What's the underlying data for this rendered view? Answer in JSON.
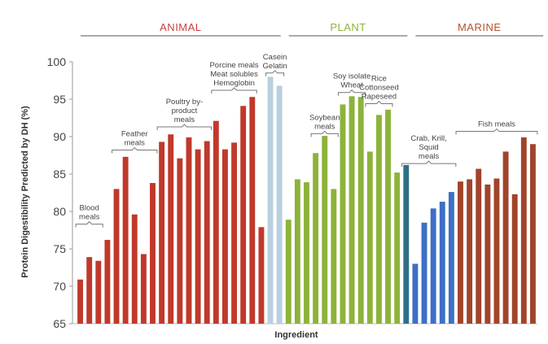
{
  "chart_data": {
    "type": "bar",
    "title": "",
    "xlabel": "Ingredient",
    "ylabel": "Protein Digestibility Predicted by DH (%)",
    "ylim": [
      65,
      100
    ],
    "yticks": [
      65,
      70,
      75,
      80,
      85,
      90,
      95,
      100
    ],
    "grid": false,
    "groups": [
      {
        "label": "ANIMAL",
        "color": "#c84040",
        "start": 0,
        "end": 22
      },
      {
        "label": "PLANT",
        "color": "#8fb33a",
        "start": 23,
        "end": 36
      },
      {
        "label": "MARINE",
        "color": "#b5532e",
        "start": 37,
        "end": 51
      }
    ],
    "series": [
      {
        "values": [
          70.9,
          73.9,
          73.4,
          76.2,
          83.0,
          87.3,
          79.6,
          74.3,
          83.8,
          89.3,
          90.3,
          87.1,
          89.9,
          88.3,
          89.4,
          92.1,
          88.3,
          89.2,
          94.1,
          95.3,
          77.9,
          98.0,
          96.8,
          78.9,
          84.3,
          83.9,
          87.8,
          90.1,
          83.0,
          94.3,
          95.4,
          95.3,
          88.0,
          92.9,
          93.6,
          85.2,
          86.2,
          73.0,
          78.5,
          80.4,
          81.3,
          82.6,
          84.0,
          84.3,
          85.7,
          83.6,
          84.4,
          88.0,
          82.3,
          89.9,
          89.0
        ],
        "colors": [
          "#c0392b",
          "#c0392b",
          "#c0392b",
          "#c0392b",
          "#c0392b",
          "#c0392b",
          "#c0392b",
          "#c0392b",
          "#c0392b",
          "#c0392b",
          "#c0392b",
          "#c0392b",
          "#c0392b",
          "#c0392b",
          "#c0392b",
          "#c0392b",
          "#c0392b",
          "#c0392b",
          "#c0392b",
          "#c0392b",
          "#c0392b",
          "#b8d0e0",
          "#b8d0e0",
          "#8db33a",
          "#8db33a",
          "#8db33a",
          "#8db33a",
          "#8db33a",
          "#8db33a",
          "#8db33a",
          "#8db33a",
          "#8db33a",
          "#8db33a",
          "#8db33a",
          "#8db33a",
          "#8db33a",
          "#2e6f86",
          "#3d6fc6",
          "#3d6fc6",
          "#3d6fc6",
          "#3d6fc6",
          "#3d6fc6",
          "#a0442a",
          "#a0442a",
          "#a0442a",
          "#a0442a",
          "#a0442a",
          "#a0442a",
          "#a0442a",
          "#a0442a",
          "#a0442a"
        ]
      }
    ],
    "annotations": [
      {
        "lines": [
          "Blood",
          "meals"
        ],
        "from": 0,
        "to": 2,
        "y": 78.3
      },
      {
        "lines": [
          "Feather",
          "meals"
        ],
        "from": 4,
        "to": 8,
        "y": 88.2
      },
      {
        "lines": [
          "Poultry by-",
          "product",
          "meals"
        ],
        "from": 9,
        "to": 14,
        "y": 91.3
      },
      {
        "lines": [
          "Porcine meals",
          "Meat solubles",
          "Hemoglobin"
        ],
        "from": 15,
        "to": 19,
        "y": 96.2
      },
      {
        "lines": [
          "Casein",
          "Gelatin"
        ],
        "from": 21,
        "to": 22,
        "y": 98.5
      },
      {
        "lines": [
          "Soybean",
          "meals"
        ],
        "from": 26,
        "to": 28,
        "y": 90.4
      },
      {
        "lines": [
          "Soy isolate",
          "Wheat"
        ],
        "from": 29,
        "to": 31,
        "y": 95.9
      },
      {
        "lines": [
          "Rice",
          "Cottonseed",
          "Rapeseed"
        ],
        "from": 32,
        "to": 34,
        "y": 94.4
      },
      {
        "lines": [
          "Crab, Krill,",
          "Squid",
          "meals"
        ],
        "from": 36,
        "to": 41,
        "y": 86.4
      },
      {
        "lines": [
          "Fish meals"
        ],
        "from": 42,
        "to": 50,
        "y": 90.7
      }
    ]
  }
}
